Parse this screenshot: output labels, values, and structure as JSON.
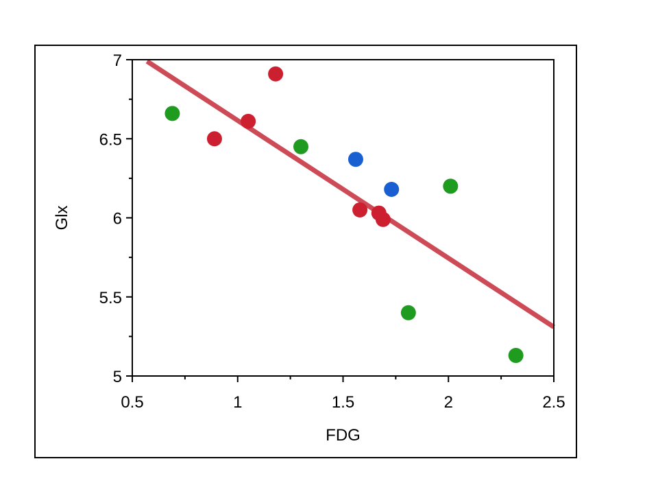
{
  "chart_data": {
    "type": "scatter",
    "title": "",
    "xlabel": "FDG",
    "ylabel": "Glx",
    "xlim": [
      0.5,
      2.5
    ],
    "ylim": [
      5,
      7
    ],
    "x_ticks": [
      "0.5",
      "1",
      "1.5",
      "2",
      "2.5"
    ],
    "y_ticks": [
      "5",
      "5.5",
      "6",
      "6.5",
      "7"
    ],
    "x_tick_values": [
      0.5,
      1,
      1.5,
      2,
      2.5
    ],
    "y_tick_values": [
      5,
      5.5,
      6,
      6.5,
      7
    ],
    "x_minor_ticks": [
      0.75,
      1.25,
      1.75,
      2.25
    ],
    "y_minor_ticks": [
      5.25,
      5.75,
      6.25,
      6.75
    ],
    "grid": false,
    "legend": "none",
    "series": [
      {
        "color": "#cc1f2f",
        "points": [
          {
            "x": 0.89,
            "y": 6.5
          },
          {
            "x": 1.05,
            "y": 6.61
          },
          {
            "x": 1.18,
            "y": 6.91
          },
          {
            "x": 1.58,
            "y": 6.05
          },
          {
            "x": 1.67,
            "y": 6.03
          },
          {
            "x": 1.69,
            "y": 5.99
          }
        ]
      },
      {
        "color": "#1f9c1f",
        "points": [
          {
            "x": 0.69,
            "y": 6.66
          },
          {
            "x": 1.3,
            "y": 6.45
          },
          {
            "x": 1.81,
            "y": 5.4
          },
          {
            "x": 2.01,
            "y": 6.2
          },
          {
            "x": 2.32,
            "y": 5.13
          }
        ]
      },
      {
        "color": "#1a5fd1",
        "points": [
          {
            "x": 1.56,
            "y": 6.37
          },
          {
            "x": 1.73,
            "y": 6.18
          }
        ]
      }
    ],
    "fit_line": {
      "color": "#cd4a57",
      "x": [
        0.57,
        2.5
      ],
      "y": [
        6.99,
        5.31
      ]
    }
  }
}
